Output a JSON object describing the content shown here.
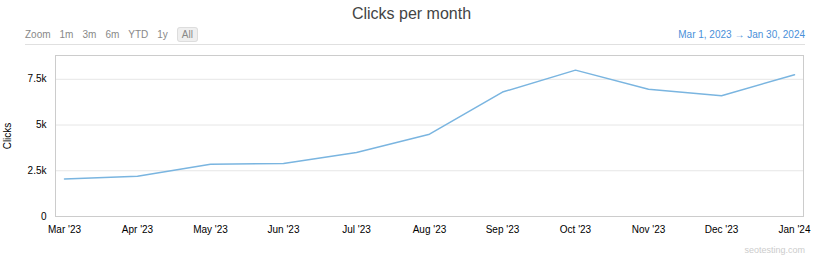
{
  "chart_data": {
    "type": "line",
    "title": "Clicks per month",
    "y_label": "Clicks",
    "annotations": [
      "Zoom",
      "1m",
      "3m",
      "6m",
      "YTD",
      "1y",
      "All",
      "Mar 1, 2023  →  Jan 30, 2024",
      "seotesting.com"
    ],
    "categories": [
      "Mar '23",
      "Apr '23",
      "May '23",
      "Jun '23",
      "Jul '23",
      "Aug '23",
      "Sep '23",
      "Oct '23",
      "Nov '23",
      "Dec '23",
      "Jan '24"
    ],
    "values": [
      2050,
      2200,
      2850,
      2900,
      3500,
      4500,
      6800,
      8000,
      6950,
      6600,
      7750
    ],
    "color": "#7ab5e0",
    "ylim": [
      0,
      8800
    ],
    "yticks": [
      0,
      {
        "value": 2500,
        "label": "2.5k"
      },
      {
        "value": 5000,
        "label": "5k"
      },
      {
        "value": 7500,
        "label": "7.5k"
      }
    ],
    "grid": true
  }
}
